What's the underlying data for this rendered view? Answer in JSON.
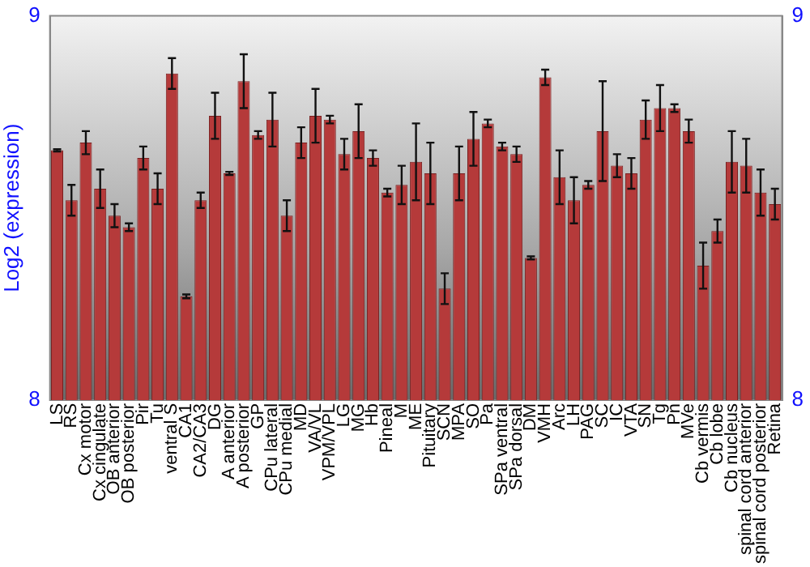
{
  "chart_data": {
    "type": "bar",
    "ylabel": "Log2 (expression)",
    "categories": [
      "LS",
      "RS",
      "Cx motor",
      "Cx cingulate",
      "OB anterior",
      "OB posterior",
      "Pir",
      "Tu",
      "ventral S",
      "CA1",
      "CA2/CA3",
      "DG",
      "A anterior",
      "A posterior",
      "GP",
      "CPu lateral",
      "CPu medial",
      "MD",
      "VA/VL",
      "VPM/VPL",
      "LG",
      "MG",
      "Hb",
      "Pineal",
      "M",
      "ME",
      "Pituitary",
      "SCN",
      "MPA",
      "SO",
      "Pa",
      "SPa ventral",
      "SPa dorsal",
      "DM",
      "VMH",
      "Arc",
      "LH",
      "PAG",
      "SC",
      "IC",
      "VTA",
      "SN",
      "Tg",
      "Pn",
      "MVe",
      "Cb vermis",
      "Cb lobe",
      "Cb nucleus",
      "spinal cord anterior",
      "spinal cord posterior",
      "Retina"
    ],
    "values": [
      8.65,
      8.52,
      8.67,
      8.55,
      8.48,
      8.45,
      8.63,
      8.55,
      8.85,
      8.27,
      8.52,
      8.74,
      8.59,
      8.83,
      8.69,
      8.73,
      8.48,
      8.67,
      8.74,
      8.73,
      8.64,
      8.7,
      8.63,
      8.54,
      8.56,
      8.62,
      8.59,
      8.29,
      8.59,
      8.68,
      8.72,
      8.66,
      8.64,
      8.37,
      8.84,
      8.58,
      8.52,
      8.56,
      8.7,
      8.61,
      8.59,
      8.73,
      8.76,
      8.76,
      8.7,
      8.35,
      8.44,
      8.62,
      8.61,
      8.54,
      8.51
    ],
    "errors": [
      0.003,
      0.04,
      0.03,
      0.05,
      0.03,
      0.01,
      0.03,
      0.04,
      0.04,
      0.005,
      0.02,
      0.06,
      0.004,
      0.07,
      0.01,
      0.07,
      0.04,
      0.04,
      0.07,
      0.01,
      0.04,
      0.07,
      0.02,
      0.01,
      0.05,
      0.1,
      0.08,
      0.04,
      0.07,
      0.07,
      0.01,
      0.01,
      0.02,
      0.004,
      0.02,
      0.07,
      0.06,
      0.01,
      0.13,
      0.03,
      0.04,
      0.05,
      0.06,
      0.01,
      0.03,
      0.06,
      0.03,
      0.08,
      0.07,
      0.06,
      0.04
    ],
    "color": "#b53a3a",
    "ylim": [
      8,
      9
    ],
    "yticks": [
      8,
      9
    ],
    "y2lim": [
      8,
      9
    ],
    "y2ticks": [
      8,
      9
    ],
    "grid": false,
    "legend": false
  }
}
